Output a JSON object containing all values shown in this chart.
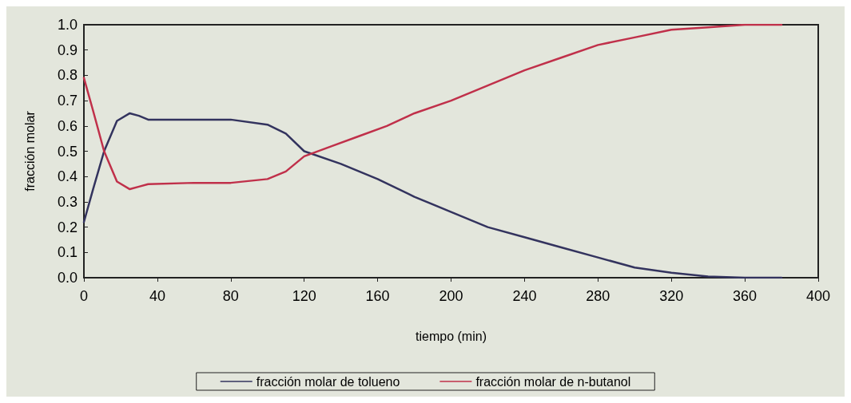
{
  "chart_data": {
    "type": "line",
    "xlabel": "tiempo (min)",
    "ylabel": "fracción molar",
    "xlim": [
      0,
      400
    ],
    "xticks": [
      0,
      40,
      80,
      120,
      160,
      200,
      240,
      280,
      320,
      360,
      400
    ],
    "ylim": [
      0,
      1
    ],
    "yticks": [
      {
        "value": 0,
        "label": "0.0"
      },
      0.1,
      0.2,
      0.3,
      0.4,
      0.5,
      0.6,
      0.7,
      0.8,
      0.9,
      {
        "value": 1,
        "label": "1.0"
      }
    ],
    "grid": false,
    "legend": "bottom",
    "marker": "none",
    "line_style": "solid",
    "series": [
      {
        "name": "fracción molar de tolueno",
        "color": "#33335e",
        "x": [
          0,
          5,
          11,
          18,
          25,
          30,
          35,
          50,
          80,
          100,
          110,
          120,
          140,
          160,
          180,
          200,
          220,
          240,
          260,
          280,
          300,
          320,
          340,
          360,
          380
        ],
        "values": [
          0.22,
          0.35,
          0.5,
          0.62,
          0.65,
          0.64,
          0.625,
          0.625,
          0.625,
          0.605,
          0.57,
          0.5,
          0.45,
          0.39,
          0.32,
          0.26,
          0.2,
          0.16,
          0.12,
          0.08,
          0.04,
          0.02,
          0.005,
          0.0,
          0.0
        ]
      },
      {
        "name": "fracción molar de n-butanol",
        "color": "#c0304a",
        "x": [
          0,
          5,
          11,
          18,
          25,
          30,
          35,
          60,
          80,
          100,
          110,
          120,
          135,
          150,
          165,
          180,
          200,
          220,
          240,
          260,
          280,
          300,
          320,
          340,
          360,
          380
        ],
        "values": [
          0.79,
          0.66,
          0.5,
          0.38,
          0.35,
          0.36,
          0.37,
          0.375,
          0.375,
          0.39,
          0.42,
          0.48,
          0.52,
          0.56,
          0.6,
          0.65,
          0.7,
          0.76,
          0.82,
          0.87,
          0.92,
          0.95,
          0.98,
          0.99,
          1.0,
          1.0
        ]
      }
    ]
  }
}
